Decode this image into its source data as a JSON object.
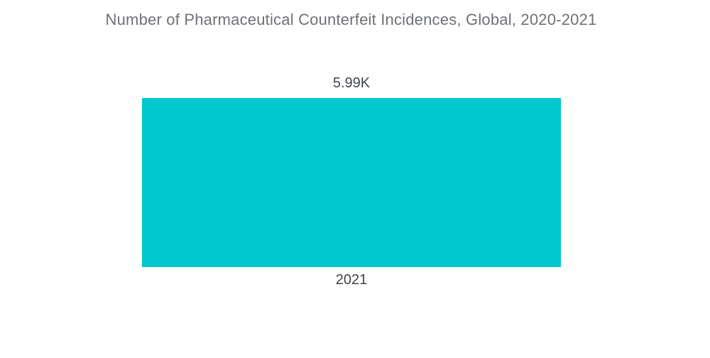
{
  "chart_data": {
    "type": "bar",
    "title": "Number of Pharmaceutical Counterfeit Incidences, Global, 2020-2021",
    "categories": [
      "2021"
    ],
    "values": [
      5990
    ],
    "value_labels": [
      "5.99K"
    ],
    "xlabel": "",
    "ylabel": "",
    "orientation": "vertical",
    "legend": "none",
    "grid": false,
    "axes_visible": false,
    "ylim": [
      0,
      5990
    ],
    "colors": {
      "bar": "#02C7CE",
      "title_text": "#6E7175",
      "label_text": "#3F4448",
      "background": "#FFFFFF"
    }
  }
}
